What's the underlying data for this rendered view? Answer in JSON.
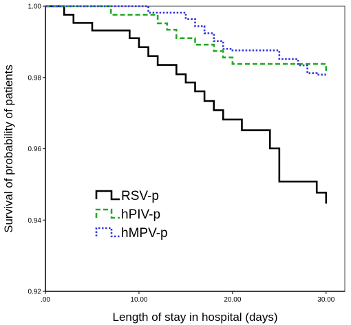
{
  "chart_data": {
    "type": "line",
    "step": true,
    "title": "",
    "xlabel": "Length of stay in hospital (days)",
    "ylabel": "Survival of probability of patients",
    "xlim": [
      0,
      32
    ],
    "ylim": [
      0.92,
      1.0
    ],
    "x_ticks": [
      0,
      10,
      20,
      30
    ],
    "x_tick_labels": [
      ".00",
      "10.00",
      "20.00",
      "30.00"
    ],
    "y_ticks": [
      0.92,
      0.94,
      0.96,
      0.98,
      1.0
    ],
    "y_tick_labels": [
      "0.92",
      "0.94",
      "0.96",
      "0.98",
      "1.00"
    ],
    "grid": false,
    "legend_position": "bottom-left",
    "series": [
      {
        "name": "RSV-p",
        "color": "#000000",
        "style": "solid",
        "x": [
          0,
          2,
          3,
          5,
          8,
          9,
          10,
          11,
          12,
          14,
          15,
          16,
          17,
          18,
          19,
          21,
          24,
          25,
          29,
          30
        ],
        "y": [
          1.0,
          0.9976,
          0.9953,
          0.9932,
          0.9932,
          0.991,
          0.9885,
          0.986,
          0.9835,
          0.9809,
          0.9786,
          0.9761,
          0.9734,
          0.9708,
          0.9682,
          0.9652,
          0.9601,
          0.9508,
          0.9477,
          0.9446
        ]
      },
      {
        "name": "hPIV-p",
        "color": "#22aa22",
        "style": "dashed",
        "x": [
          0,
          7,
          9,
          12,
          13,
          14,
          16,
          18,
          19,
          20,
          22,
          26,
          30
        ],
        "y": [
          1.0,
          0.9976,
          0.9976,
          0.9952,
          0.9934,
          0.991,
          0.9892,
          0.9874,
          0.9856,
          0.9838,
          0.9838,
          0.9838,
          0.9814
        ]
      },
      {
        "name": "hMPV-p",
        "color": "#3333dd",
        "style": "dotted",
        "x": [
          0,
          10,
          11,
          13,
          15,
          16,
          17,
          18,
          19,
          20,
          21,
          25,
          27,
          28,
          29,
          30
        ],
        "y": [
          1.0,
          1.0,
          0.9982,
          0.9982,
          0.9964,
          0.9944,
          0.9924,
          0.9902,
          0.988,
          0.9876,
          0.9876,
          0.9852,
          0.9834,
          0.9812,
          0.9808,
          0.9808
        ]
      }
    ]
  }
}
